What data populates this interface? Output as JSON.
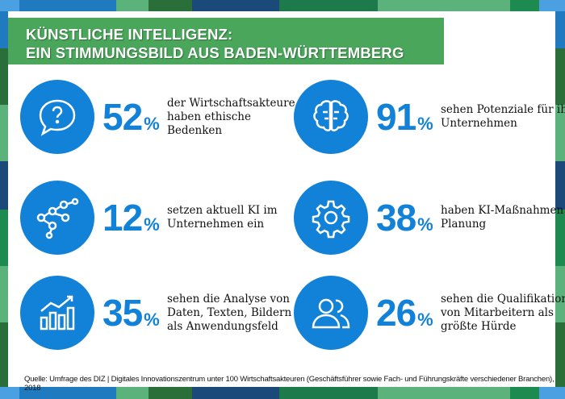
{
  "title": {
    "line1": "KÜNSTLICHE INTELLIGENZ:",
    "line2": "EIN STIMMUNGSBILD AUS BADEN-WÜRTTEMBERG"
  },
  "stats": [
    {
      "icon": "speech-bubble-question-icon",
      "value": "52",
      "unit": "%",
      "text": "der Wirtschaftsakteure haben ethische Bedenken"
    },
    {
      "icon": "brain-icon",
      "value": "91",
      "unit": "%",
      "text": "sehen Potenziale für ihr Unternehmen"
    },
    {
      "icon": "network-icon",
      "value": "12",
      "unit": "%",
      "text": "setzen aktuell KI im Unternehmen ein"
    },
    {
      "icon": "gear-icon",
      "value": "38",
      "unit": "%",
      "text": "haben KI-Maßnahmen in Planung"
    },
    {
      "icon": "bar-chart-growth-icon",
      "value": "35",
      "unit": "%",
      "text": "sehen die Analyse von Daten, Texten, Bildern als Anwendungsfeld"
    },
    {
      "icon": "users-icon",
      "value": "26",
      "unit": "%",
      "text": "sehen die Qualifikation von Mitarbeitern als größte Hürde"
    }
  ],
  "source": "Quelle: Umfrage des DIZ | Digitales Innovationszentrum unter 100 Wirtschaftsakteuren (Geschäftsführer sowie Fach- und Führungskräfte verschiedener Branchen), 2018",
  "colors": {
    "accent": "#1281d8",
    "banner": "#4aa65a"
  }
}
